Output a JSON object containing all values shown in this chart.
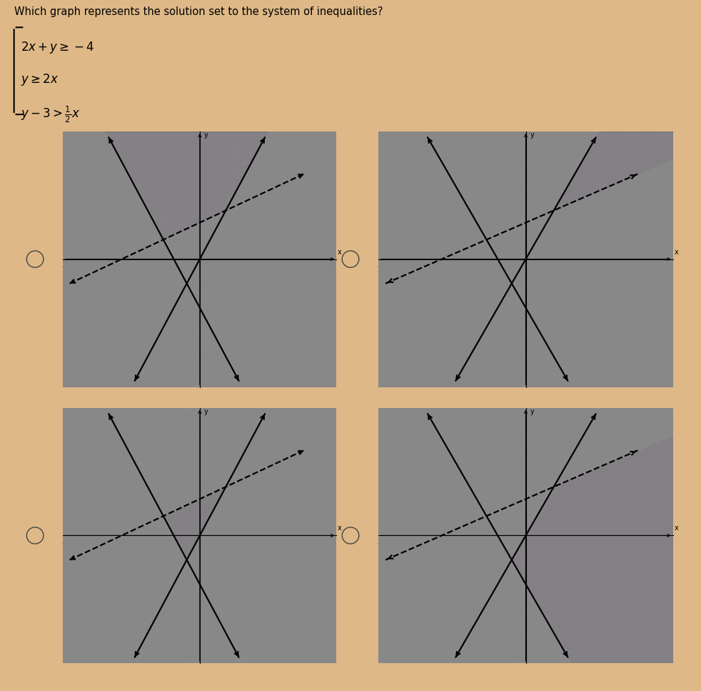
{
  "title": "Which graph represents the solution set to the system of inequalities?",
  "bg_color": "#deb887",
  "shade_color": "#888888",
  "shade_alpha": 0.35,
  "axis_range": [
    -10,
    10
  ],
  "line1_slope": -2,
  "line1_intercept": -4,
  "line2_slope": 2,
  "line2_intercept": 0,
  "line3_slope": 0.5,
  "line3_intercept": 3,
  "graphs": [
    {
      "shade_conditions": [
        1,
        1,
        1
      ],
      "description": "y>=-2x-4 AND y>=2x AND y>0.5x+3, large upper-left"
    },
    {
      "shade_conditions": [
        1,
        -1,
        1
      ],
      "description": "y>=-2x-4 AND y<=2x AND y>0.5x+3, small triangle"
    },
    {
      "shade_conditions": [
        1,
        1,
        -1
      ],
      "description": "y>=-2x-4 AND y>=2x AND y<0.5x+3, upper triangle"
    },
    {
      "shade_conditions": [
        1,
        -1,
        -1
      ],
      "description": "y>=-2x-4 AND y<=2x AND y<0.5x+3, lower right"
    }
  ]
}
